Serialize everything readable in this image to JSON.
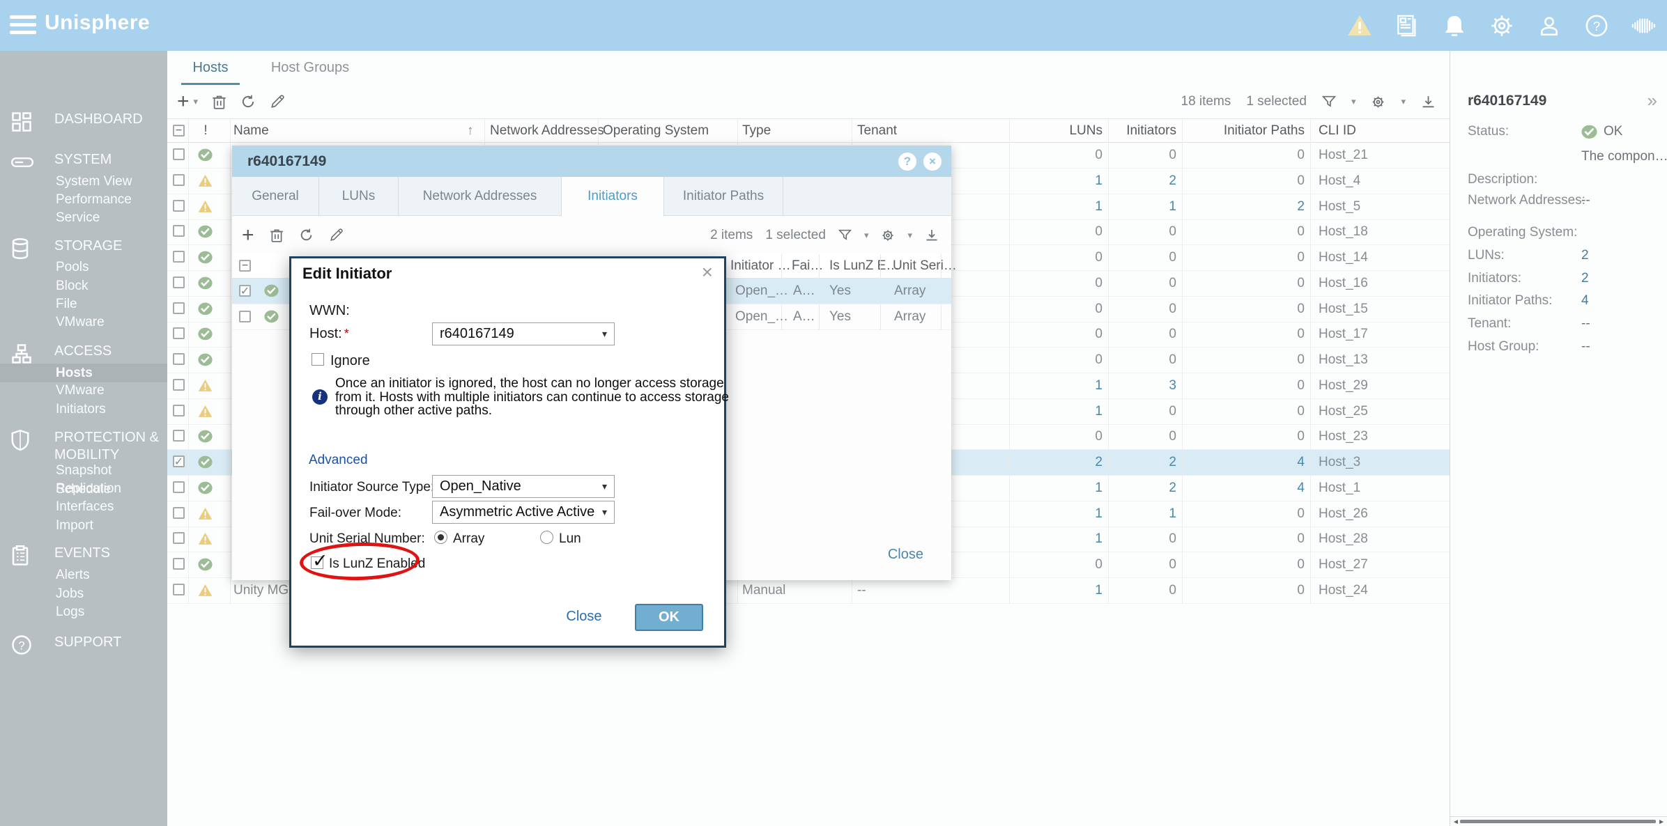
{
  "app": {
    "title": "Unisphere"
  },
  "glyphs": {
    "sort_asc": "↑",
    "caret_down": "▾",
    "collapse_chevrons": "»",
    "minus": "−",
    "check": "✓",
    "plus": "+",
    "close_x": "×",
    "help_q": "?",
    "scroll_left": "◄",
    "scroll_right": "►",
    "info_i": "i"
  },
  "colors": {
    "topbar_bg": "#a9d2ee",
    "sidebar_bg": "#b7bfc3",
    "selection_bg": "#d9ecf6",
    "status_ok_green": "#9cbc95",
    "status_warn_yellow": "#eccb7e",
    "modal_border": "#1c4265",
    "ok_button_bg": "#71aed0",
    "annotation_red": "#e01313",
    "link_blue": "#4788ab"
  },
  "sidebar": {
    "sections": [
      {
        "label": "DASHBOARD",
        "icon": "dashboard-icon",
        "items": []
      },
      {
        "label": "SYSTEM",
        "icon": "system-icon",
        "items": [
          "System View",
          "Performance",
          "Service"
        ]
      },
      {
        "label": "STORAGE",
        "icon": "storage-icon",
        "items": [
          "Pools",
          "Block",
          "File",
          "VMware"
        ]
      },
      {
        "label": "ACCESS",
        "icon": "access-icon",
        "items": [
          "Hosts",
          "VMware",
          "Initiators"
        ],
        "selected_item": "Hosts"
      },
      {
        "label": "PROTECTION & MOBILITY",
        "icon": "protection-icon",
        "items": [
          "Snapshot Schedule",
          "Replication",
          "Interfaces",
          "Import"
        ]
      },
      {
        "label": "EVENTS",
        "icon": "events-icon",
        "items": [
          "Alerts",
          "Jobs",
          "Logs"
        ]
      },
      {
        "label": "SUPPORT",
        "icon": "support-icon",
        "items": []
      }
    ]
  },
  "content": {
    "tabs": [
      {
        "label": "Hosts",
        "active": true
      },
      {
        "label": "Host Groups",
        "active": false
      }
    ],
    "toolbar": {
      "items_text": "18 items",
      "selected_text": "1 selected"
    },
    "table": {
      "headers": {
        "status": "!",
        "name": "Name",
        "network_addresses": "Network Addresses",
        "operating_system": "Operating System",
        "type": "Type",
        "tenant": "Tenant",
        "luns": "LUNs",
        "initiators": "Initiators",
        "initiator_paths": "Initiator Paths",
        "cli_id": "CLI ID"
      },
      "rows": [
        {
          "status": "ok",
          "name": "",
          "type": "",
          "tenant": "",
          "luns": "0",
          "initiators": "0",
          "initiator_paths": "0",
          "cli_id": "Host_21",
          "selected": false,
          "checked": false
        },
        {
          "status": "warn",
          "name": "",
          "type": "",
          "tenant": "",
          "luns": "1",
          "initiators": "2",
          "initiator_paths": "0",
          "cli_id": "Host_4",
          "selected": false,
          "checked": false
        },
        {
          "status": "warn",
          "name": "",
          "type": "",
          "tenant": "",
          "luns": "1",
          "initiators": "1",
          "initiator_paths": "2",
          "cli_id": "Host_5",
          "selected": false,
          "checked": false
        },
        {
          "status": "ok",
          "name": "",
          "type": "",
          "tenant": "",
          "luns": "0",
          "initiators": "0",
          "initiator_paths": "0",
          "cli_id": "Host_18",
          "selected": false,
          "checked": false
        },
        {
          "status": "ok",
          "name": "",
          "type": "",
          "tenant": "",
          "luns": "0",
          "initiators": "0",
          "initiator_paths": "0",
          "cli_id": "Host_14",
          "selected": false,
          "checked": false
        },
        {
          "status": "ok",
          "name": "",
          "type": "",
          "tenant": "",
          "luns": "0",
          "initiators": "0",
          "initiator_paths": "0",
          "cli_id": "Host_16",
          "selected": false,
          "checked": false
        },
        {
          "status": "ok",
          "name": "",
          "type": "",
          "tenant": "",
          "luns": "0",
          "initiators": "0",
          "initiator_paths": "0",
          "cli_id": "Host_15",
          "selected": false,
          "checked": false
        },
        {
          "status": "ok",
          "name": "",
          "type": "",
          "tenant": "",
          "luns": "0",
          "initiators": "0",
          "initiator_paths": "0",
          "cli_id": "Host_17",
          "selected": false,
          "checked": false
        },
        {
          "status": "ok",
          "name": "",
          "type": "",
          "tenant": "",
          "luns": "0",
          "initiators": "0",
          "initiator_paths": "0",
          "cli_id": "Host_13",
          "selected": false,
          "checked": false
        },
        {
          "status": "warn",
          "name": "",
          "type": "",
          "tenant": "",
          "luns": "1",
          "initiators": "3",
          "initiator_paths": "0",
          "cli_id": "Host_29",
          "selected": false,
          "checked": false
        },
        {
          "status": "warn",
          "name": "",
          "type": "",
          "tenant": "",
          "luns": "1",
          "initiators": "0",
          "initiator_paths": "0",
          "cli_id": "Host_25",
          "selected": false,
          "checked": false
        },
        {
          "status": "ok",
          "name": "",
          "type": "",
          "tenant": "",
          "luns": "0",
          "initiators": "0",
          "initiator_paths": "0",
          "cli_id": "Host_23",
          "selected": false,
          "checked": false
        },
        {
          "status": "ok",
          "name": "",
          "type": "",
          "tenant": "",
          "luns": "2",
          "initiators": "2",
          "initiator_paths": "4",
          "cli_id": "Host_3",
          "selected": true,
          "checked": true
        },
        {
          "status": "ok",
          "name": "",
          "type": "",
          "tenant": "",
          "luns": "1",
          "initiators": "2",
          "initiator_paths": "4",
          "cli_id": "Host_1",
          "selected": false,
          "checked": false
        },
        {
          "status": "warn",
          "name": "",
          "type": "",
          "tenant": "",
          "luns": "1",
          "initiators": "1",
          "initiator_paths": "0",
          "cli_id": "Host_26",
          "selected": false,
          "checked": false
        },
        {
          "status": "warn",
          "name": "",
          "type": "",
          "tenant": "",
          "luns": "1",
          "initiators": "0",
          "initiator_paths": "0",
          "cli_id": "Host_28",
          "selected": false,
          "checked": false
        },
        {
          "status": "ok",
          "name": "",
          "type": "",
          "tenant": "",
          "luns": "0",
          "initiators": "0",
          "initiator_paths": "0",
          "cli_id": "Host_27",
          "selected": false,
          "checked": false
        },
        {
          "status": "warn",
          "name": "Unity MGM",
          "type": "Manual",
          "tenant": "--",
          "luns": "1",
          "initiators": "0",
          "initiator_paths": "0",
          "cli_id": "Host_24",
          "selected": false,
          "checked": false
        }
      ]
    }
  },
  "host_dialog": {
    "title": "r640167149",
    "tabs": [
      {
        "label": "General",
        "active": false
      },
      {
        "label": "LUNs",
        "active": false
      },
      {
        "label": "Network Addresses",
        "active": false
      },
      {
        "label": "Initiators",
        "active": true
      },
      {
        "label": "Initiator Paths",
        "active": false
      }
    ],
    "toolbar": {
      "items_text": "2 items",
      "selected_text": "1 selected"
    },
    "table": {
      "headers": {
        "initiator": "Initiator …",
        "failover": "Fai…",
        "is_lunz": "Is LunZ E…",
        "unit_serial": "Unit Seri…"
      },
      "rows": [
        {
          "status": "ok",
          "initiator": "Open_…",
          "failover": "A…",
          "is_lunz": "Yes",
          "unit_serial": "Array",
          "selected": true,
          "checked": true
        },
        {
          "status": "ok",
          "initiator": "Open_…",
          "failover": "A…",
          "is_lunz": "Yes",
          "unit_serial": "Array",
          "selected": false,
          "checked": false
        }
      ]
    },
    "close_label": "Close"
  },
  "edit_modal": {
    "title": "Edit Initiator",
    "wwn_label": "WWN:",
    "host_label": "Host:",
    "required_marker": "*",
    "host_value": "r640167149",
    "ignore_label": "Ignore",
    "ignore_checked": false,
    "info_text": "Once an initiator is ignored, the host can no longer access storage from it. Hosts with multiple initiators can continue to access storage through other active paths.",
    "advanced_label": "Advanced",
    "initiator_source_label": "Initiator Source Type:",
    "initiator_source_value": "Open_Native",
    "failover_label": "Fail-over Mode:",
    "failover_value": "Asymmetric Active Active",
    "unit_serial_label": "Unit Serial Number:",
    "unit_serial_options": [
      "Array",
      "Lun"
    ],
    "unit_serial_selected": "Array",
    "lunz_label": "Is LunZ Enabled",
    "lunz_checked": true,
    "close_label": "Close",
    "ok_label": "OK"
  },
  "right_panel": {
    "title": "r640167149",
    "fields": [
      {
        "label": "Status:",
        "value": "OK",
        "type": "status"
      },
      {
        "label": "",
        "value": "The compon…",
        "type": "text"
      },
      {
        "label": "Description:",
        "value": "",
        "type": "text"
      },
      {
        "label": "Network Addresses:",
        "value": "--",
        "type": "text"
      },
      {
        "label": "Operating System:",
        "value": "",
        "type": "text"
      },
      {
        "label": "LUNs:",
        "value": "2",
        "type": "link"
      },
      {
        "label": "Initiators:",
        "value": "2",
        "type": "link"
      },
      {
        "label": "Initiator Paths:",
        "value": "4",
        "type": "link"
      },
      {
        "label": "Tenant:",
        "value": "--",
        "type": "text"
      },
      {
        "label": "Host Group:",
        "value": "--",
        "type": "text"
      }
    ]
  }
}
